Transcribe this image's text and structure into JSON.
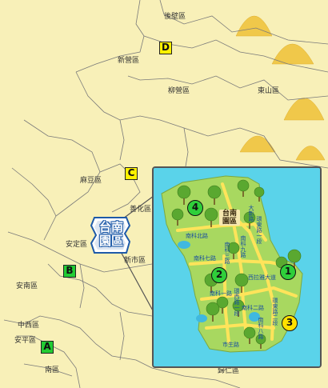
{
  "districts": {
    "houbi": "後壁區",
    "xinying": "新營區",
    "liuying": "柳營區",
    "dongshan": "東山區",
    "madou": "麻豆區",
    "shanhua": "善化區",
    "anding": "安定區",
    "xinshi": "新市區",
    "annan": "安南區",
    "west_central": "中西區",
    "anping": "安平區",
    "nan": "南區",
    "guiren": "歸仁區"
  },
  "markers": {
    "A": "A",
    "B": "B",
    "C": "C",
    "D": "D"
  },
  "callout": {
    "line1": "台南",
    "line2": "園區"
  },
  "park": {
    "name_line1": "台南",
    "name_line2": "園區",
    "numbers": {
      "n1": "1",
      "n2": "2",
      "n3": "3",
      "n4": "4"
    },
    "roads": {
      "nanke_north": "南科北路",
      "nanke_7": "南科七路",
      "nanke_3": "南科三路",
      "nanke_9": "南科九路",
      "xilaxuan": "西拉雅大道",
      "fuxing": "環東路一段",
      "nanke_2": "南科二路",
      "huanxi": "環西路一段",
      "nanke_1": "南科一路",
      "nanke_8": "南科八路",
      "huandong2": "環東路二段",
      "dalian": "大新路",
      "chisheng": "市生路"
    }
  },
  "colors": {
    "land": "#f8f0b8",
    "water": "#5ad3ea",
    "park": "#a8d860",
    "road": "#ffe45a",
    "marker_yellow": "#fff200",
    "marker_green": "#22cc33"
  }
}
